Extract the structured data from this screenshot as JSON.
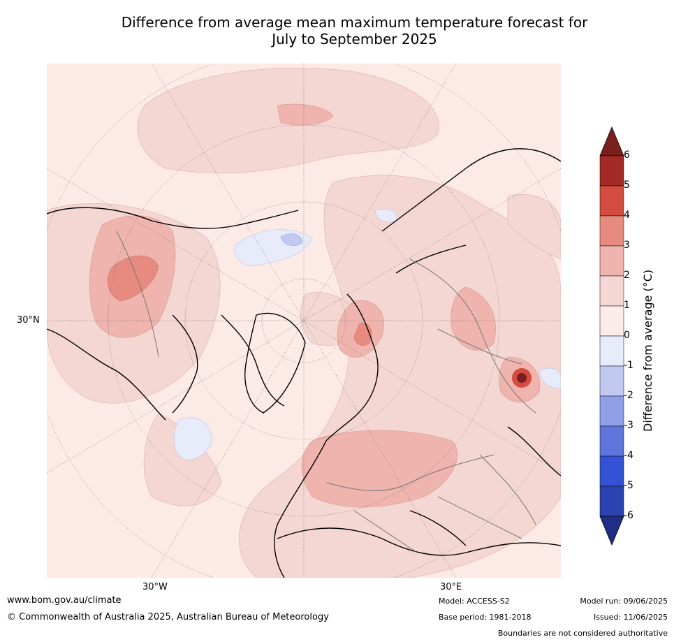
{
  "title_line1": "Difference from average mean maximum temperature forecast for",
  "title_line2": "July to September 2025",
  "map": {
    "lat_label": "30°N",
    "lon_labels": [
      "30°W",
      "30°E"
    ]
  },
  "colorbar": {
    "label": "Difference from average (°C)",
    "ticks": [
      "6",
      "5",
      "4",
      "3",
      "2",
      "1",
      "0",
      "-1",
      "-2",
      "-3",
      "-4",
      "-5",
      "-6"
    ],
    "colors": [
      "#7b1e1e",
      "#a32a25",
      "#d44b40",
      "#e78b80",
      "#eeb4ad",
      "#f4d6d2",
      "#fbecea",
      "#e8ecfa",
      "#c2c9f1",
      "#8f9fe8",
      "#5f75dc",
      "#3452d6",
      "#2a43b0",
      "#1f2f86"
    ]
  },
  "footer": {
    "website": "www.bom.gov.au/climate",
    "copyright": "© Commonwealth of Australia 2025, Australian Bureau of Meteorology",
    "model": "Model: ACCESS-S2",
    "base_period": "Base period: 1981-2018",
    "model_run": "Model run: 09/06/2025",
    "issued": "Issued: 11/06/2025",
    "disclaimer": "Boundaries are not considered authoritative"
  }
}
